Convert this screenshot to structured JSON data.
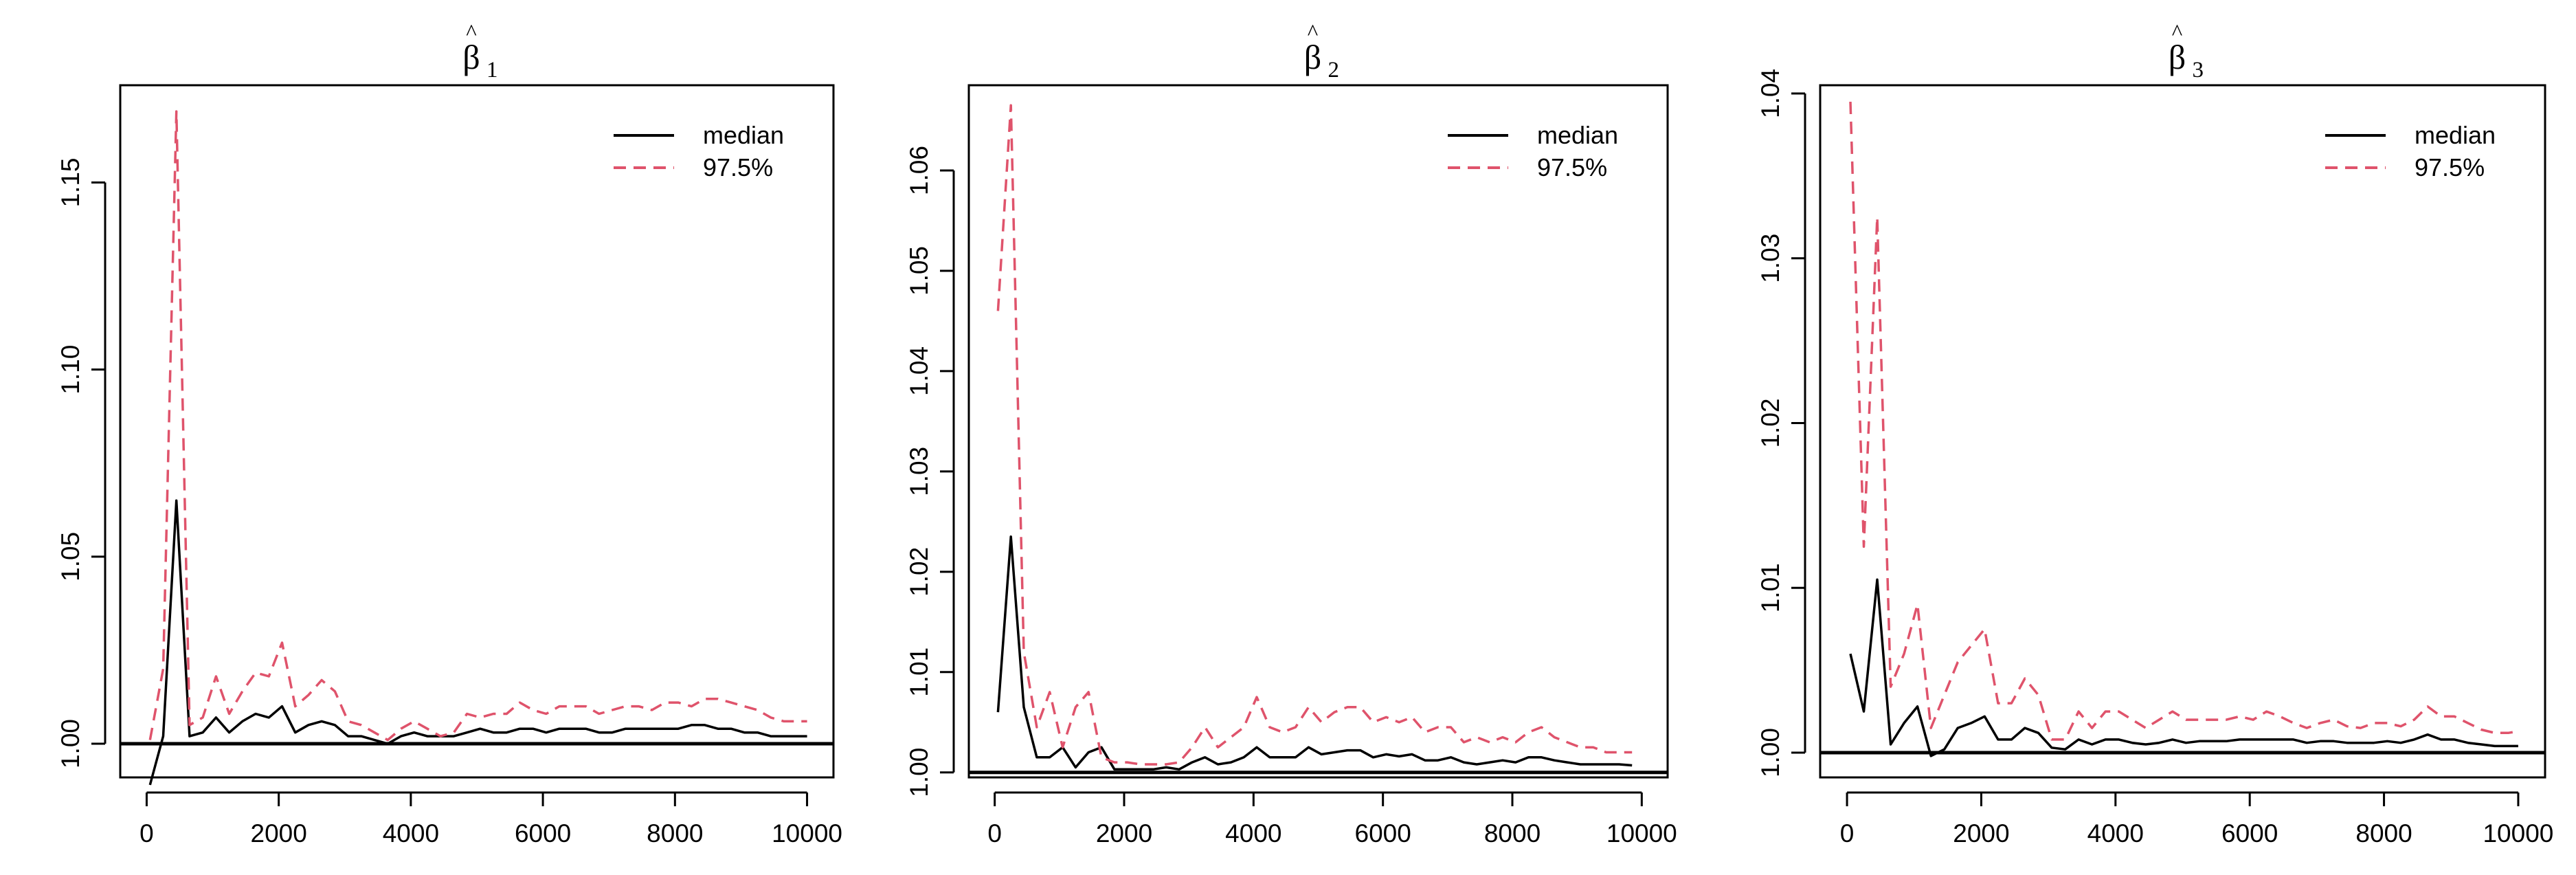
{
  "chart_data": [
    {
      "type": "line",
      "title": "β̂",
      "title_base": "β",
      "title_hat": "^",
      "title_subscript": "1",
      "xlabel": "",
      "ylabel": "",
      "xlim": [
        0,
        10000
      ],
      "ylim": [
        0.991,
        1.176
      ],
      "xticks": [
        0,
        2000,
        4000,
        6000,
        8000,
        10000
      ],
      "yticks": [
        1.0,
        1.05,
        1.1,
        1.15
      ],
      "ytick_labels": [
        "1.00",
        "1.05",
        "1.10",
        "1.15"
      ],
      "reference_line": 1.0,
      "legend": {
        "position": "top-right",
        "entries": [
          "median",
          "97.5%"
        ]
      },
      "series": [
        {
          "name": "median",
          "color": "#000000",
          "style": "solid",
          "x": [
            50,
            250,
            450,
            650,
            850,
            1050,
            1250,
            1450,
            1650,
            1850,
            2050,
            2250,
            2450,
            2650,
            2850,
            3050,
            3250,
            3450,
            3650,
            3850,
            4050,
            4250,
            4450,
            4650,
            4850,
            5050,
            5250,
            5450,
            5650,
            5850,
            6050,
            6250,
            6450,
            6650,
            6850,
            7050,
            7250,
            7450,
            7650,
            7850,
            8050,
            8250,
            8450,
            8650,
            8850,
            9050,
            9250,
            9450,
            9650,
            9850,
            10000
          ],
          "values": [
            0.989,
            1.002,
            1.065,
            1.002,
            1.003,
            1.007,
            1.003,
            1.006,
            1.008,
            1.007,
            1.01,
            1.003,
            1.005,
            1.006,
            1.005,
            1.002,
            1.002,
            1.001,
            1.0,
            1.002,
            1.003,
            1.002,
            1.002,
            1.002,
            1.003,
            1.004,
            1.003,
            1.003,
            1.004,
            1.004,
            1.003,
            1.004,
            1.004,
            1.004,
            1.003,
            1.003,
            1.004,
            1.004,
            1.004,
            1.004,
            1.004,
            1.005,
            1.005,
            1.004,
            1.004,
            1.003,
            1.003,
            1.002,
            1.002,
            1.002,
            1.002
          ]
        },
        {
          "name": "97.5%",
          "color": "#df536b",
          "style": "dashed",
          "x": [
            50,
            250,
            450,
            650,
            850,
            1050,
            1250,
            1450,
            1650,
            1850,
            2050,
            2250,
            2450,
            2650,
            2850,
            3050,
            3250,
            3450,
            3650,
            3850,
            4050,
            4250,
            4450,
            4650,
            4850,
            5050,
            5250,
            5450,
            5650,
            5850,
            6050,
            6250,
            6450,
            6650,
            6850,
            7050,
            7250,
            7450,
            7650,
            7850,
            8050,
            8250,
            8450,
            8650,
            8850,
            9050,
            9250,
            9450,
            9650,
            9850,
            10000
          ],
          "values": [
            1.001,
            1.02,
            1.169,
            1.005,
            1.007,
            1.018,
            1.008,
            1.014,
            1.019,
            1.018,
            1.027,
            1.01,
            1.013,
            1.017,
            1.014,
            1.006,
            1.005,
            1.003,
            1.001,
            1.004,
            1.006,
            1.004,
            1.002,
            1.003,
            1.008,
            1.007,
            1.008,
            1.008,
            1.011,
            1.009,
            1.008,
            1.01,
            1.01,
            1.01,
            1.008,
            1.009,
            1.01,
            1.01,
            1.009,
            1.011,
            1.011,
            1.01,
            1.012,
            1.012,
            1.011,
            1.01,
            1.009,
            1.007,
            1.006,
            1.006,
            1.006
          ]
        }
      ]
    },
    {
      "type": "line",
      "title": "β̂",
      "title_base": "β",
      "title_hat": "^",
      "title_subscript": "2",
      "xlabel": "",
      "ylabel": "",
      "xlim": [
        0,
        10000
      ],
      "ylim": [
        0.9995,
        1.0685
      ],
      "xticks": [
        0,
        2000,
        4000,
        6000,
        8000,
        10000
      ],
      "yticks": [
        1.0,
        1.01,
        1.02,
        1.03,
        1.04,
        1.05,
        1.06
      ],
      "ytick_labels": [
        "1.00",
        "1.01",
        "1.02",
        "1.03",
        "1.04",
        "1.05",
        "1.06"
      ],
      "reference_line": 1.0,
      "legend": {
        "position": "top-right",
        "entries": [
          "median",
          "97.5%"
        ]
      },
      "series": [
        {
          "name": "median",
          "color": "#000000",
          "style": "solid",
          "x": [
            50,
            250,
            450,
            650,
            850,
            1050,
            1250,
            1450,
            1650,
            1850,
            2050,
            2250,
            2450,
            2650,
            2850,
            3050,
            3250,
            3450,
            3650,
            3850,
            4050,
            4250,
            4450,
            4650,
            4850,
            5050,
            5250,
            5450,
            5650,
            5850,
            6050,
            6250,
            6450,
            6650,
            6850,
            7050,
            7250,
            7450,
            7650,
            7850,
            8050,
            8250,
            8450,
            8650,
            8850,
            9050,
            9250,
            9450,
            9650,
            9850
          ],
          "values": [
            1.006,
            1.0235,
            1.0065,
            1.0015,
            1.0015,
            1.0025,
            1.0005,
            1.002,
            1.0025,
            1.0003,
            1.0003,
            1.0003,
            1.0003,
            1.0005,
            1.0003,
            1.001,
            1.0015,
            1.0008,
            1.001,
            1.0015,
            1.0025,
            1.0015,
            1.0015,
            1.0015,
            1.0025,
            1.0018,
            1.002,
            1.0022,
            1.0022,
            1.0015,
            1.0018,
            1.0016,
            1.0018,
            1.0012,
            1.0012,
            1.0015,
            1.001,
            1.0008,
            1.001,
            1.0012,
            1.001,
            1.0015,
            1.0015,
            1.0012,
            1.001,
            1.0008,
            1.0008,
            1.0008,
            1.0008,
            1.0007
          ]
        },
        {
          "name": "97.5%",
          "color": "#df536b",
          "style": "dashed",
          "x": [
            50,
            250,
            450,
            650,
            850,
            1050,
            1250,
            1450,
            1650,
            1850,
            2050,
            2250,
            2450,
            2650,
            2850,
            3050,
            3250,
            3450,
            3650,
            3850,
            4050,
            4250,
            4450,
            4650,
            4850,
            5050,
            5250,
            5450,
            5650,
            5850,
            6050,
            6250,
            6450,
            6650,
            6850,
            7050,
            7250,
            7450,
            7650,
            7850,
            8050,
            8250,
            8450,
            8650,
            8850,
            9050,
            9250,
            9450,
            9650,
            9850
          ],
          "values": [
            1.046,
            1.0665,
            1.012,
            1.0045,
            1.008,
            1.0025,
            1.0065,
            1.008,
            1.0015,
            1.001,
            1.001,
            1.0008,
            1.0008,
            1.0008,
            1.001,
            1.0025,
            1.0045,
            1.0025,
            1.0035,
            1.0045,
            1.0075,
            1.0045,
            1.004,
            1.0045,
            1.0065,
            1.005,
            1.006,
            1.0065,
            1.0065,
            1.005,
            1.0055,
            1.005,
            1.0055,
            1.004,
            1.0045,
            1.0045,
            1.003,
            1.0035,
            1.003,
            1.0035,
            1.003,
            1.004,
            1.0045,
            1.0035,
            1.003,
            1.0025,
            1.0025,
            1.002,
            1.002,
            1.002
          ]
        }
      ]
    },
    {
      "type": "line",
      "title": "β̂",
      "title_base": "β",
      "title_hat": "^",
      "title_subscript": "3",
      "xlabel": "",
      "ylabel": "",
      "xlim": [
        0,
        10000
      ],
      "ylim": [
        0.9985,
        1.0405
      ],
      "xticks": [
        0,
        2000,
        4000,
        6000,
        8000,
        10000
      ],
      "yticks": [
        1.0,
        1.01,
        1.02,
        1.03,
        1.04
      ],
      "ytick_labels": [
        "1.00",
        "1.01",
        "1.02",
        "1.03",
        "1.04"
      ],
      "reference_line": 1.0,
      "legend": {
        "position": "top-right",
        "entries": [
          "median",
          "97.5%"
        ]
      },
      "series": [
        {
          "name": "median",
          "color": "#000000",
          "style": "solid",
          "x": [
            50,
            250,
            450,
            650,
            850,
            1050,
            1250,
            1450,
            1650,
            1850,
            2050,
            2250,
            2450,
            2650,
            2850,
            3050,
            3250,
            3450,
            3650,
            3850,
            4050,
            4250,
            4450,
            4650,
            4850,
            5050,
            5250,
            5450,
            5650,
            5850,
            6050,
            6250,
            6450,
            6650,
            6850,
            7050,
            7250,
            7450,
            7650,
            7850,
            8050,
            8250,
            8450,
            8650,
            8850,
            9050,
            9250,
            9450,
            9650,
            9850,
            10000
          ],
          "values": [
            1.006,
            1.0025,
            1.0105,
            1.0005,
            1.0018,
            1.0028,
            0.9998,
            1.0002,
            1.0015,
            1.0018,
            1.0022,
            1.0008,
            1.0008,
            1.0015,
            1.0012,
            1.0003,
            1.0002,
            1.0008,
            1.0005,
            1.0008,
            1.0008,
            1.0006,
            1.0005,
            1.0006,
            1.0008,
            1.0006,
            1.0007,
            1.0007,
            1.0007,
            1.0008,
            1.0008,
            1.0008,
            1.0008,
            1.0008,
            1.0006,
            1.0007,
            1.0007,
            1.0006,
            1.0006,
            1.0006,
            1.0007,
            1.0006,
            1.0008,
            1.0011,
            1.0008,
            1.0008,
            1.0006,
            1.0005,
            1.0004,
            1.0004,
            1.0004
          ]
        },
        {
          "name": "97.5%",
          "color": "#df536b",
          "style": "dashed",
          "x": [
            50,
            250,
            450,
            650,
            850,
            1050,
            1250,
            1450,
            1650,
            1850,
            2050,
            2250,
            2450,
            2650,
            2850,
            3050,
            3250,
            3450,
            3650,
            3850,
            4050,
            4250,
            4450,
            4650,
            4850,
            5050,
            5250,
            5450,
            5650,
            5850,
            6050,
            6250,
            6450,
            6650,
            6850,
            7050,
            7250,
            7450,
            7650,
            7850,
            8050,
            8250,
            8450,
            8650,
            8850,
            9050,
            9250,
            9450,
            9650,
            9850,
            10000
          ],
          "values": [
            1.0395,
            1.0125,
            1.0325,
            1.004,
            1.006,
            1.009,
            1.0015,
            1.0035,
            1.0055,
            1.0065,
            1.0075,
            1.003,
            1.003,
            1.0045,
            1.0035,
            1.0008,
            1.0008,
            1.0025,
            1.0015,
            1.0025,
            1.0025,
            1.002,
            1.0015,
            1.002,
            1.0025,
            1.002,
            1.002,
            1.002,
            1.002,
            1.0022,
            1.002,
            1.0025,
            1.0022,
            1.0018,
            1.0015,
            1.0018,
            1.002,
            1.0016,
            1.0015,
            1.0018,
            1.0018,
            1.0016,
            1.002,
            1.0028,
            1.0022,
            1.0022,
            1.0018,
            1.0014,
            1.0012,
            1.0012,
            1.0013
          ]
        }
      ]
    }
  ]
}
